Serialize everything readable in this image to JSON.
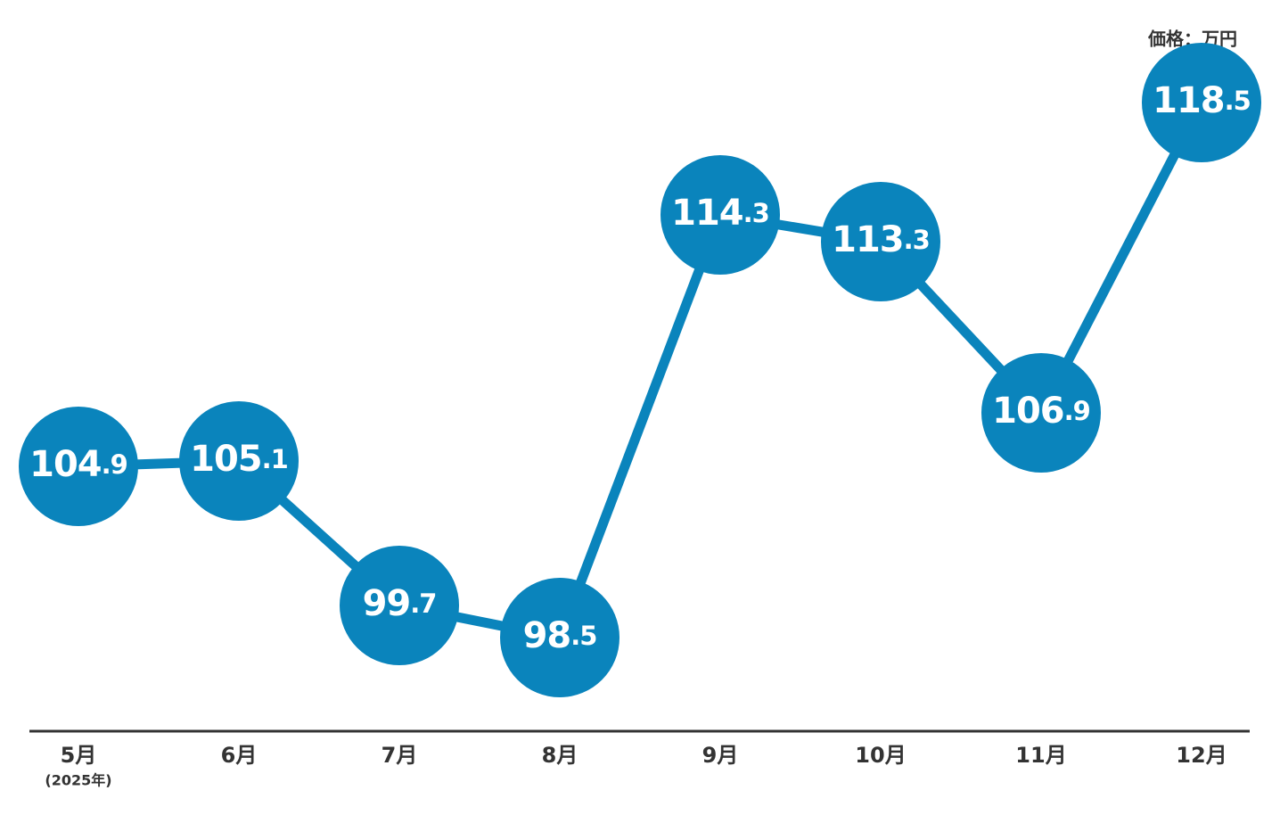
{
  "chart_data": {
    "type": "line",
    "unit_label": "価格：万円",
    "categories": [
      "5月",
      "6月",
      "7月",
      "8月",
      "9月",
      "10月",
      "11月",
      "12月"
    ],
    "category_note": "(2025年)",
    "values": [
      104.9,
      105.1,
      99.7,
      98.5,
      114.3,
      113.3,
      106.9,
      118.5
    ],
    "color": "#0a84bc",
    "ylim": [
      95,
      122
    ]
  }
}
